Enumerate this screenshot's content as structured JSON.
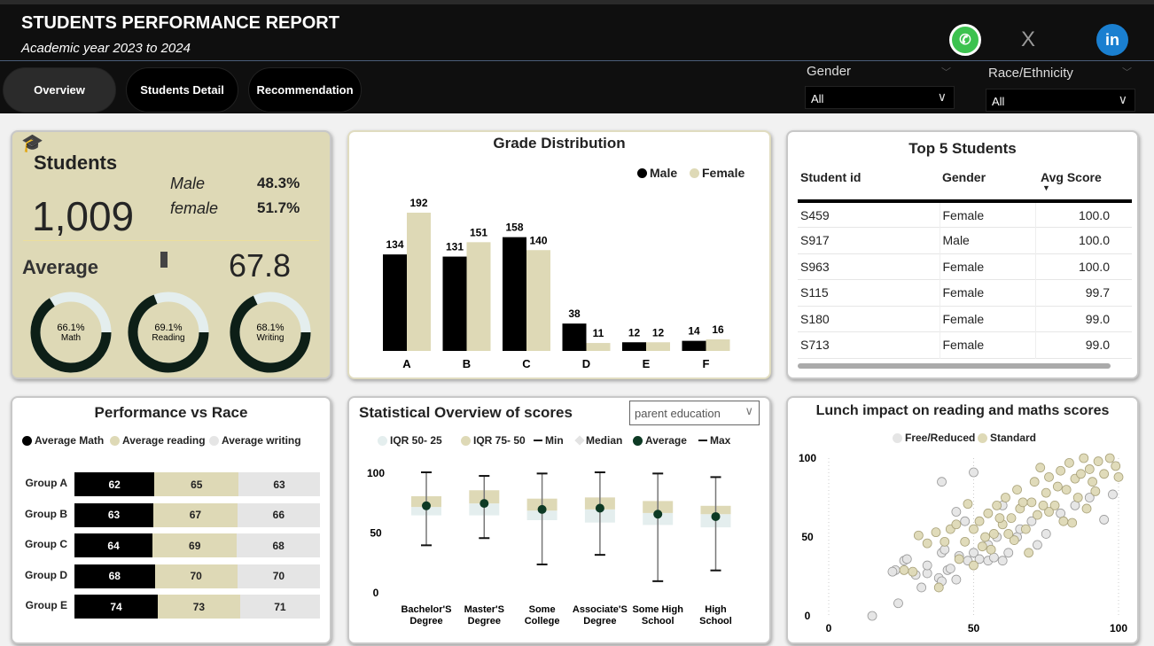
{
  "header": {
    "title": "STUDENTS PERFORMANCE REPORT",
    "subtitle": "Academic year 2023 to 2024"
  },
  "tabs": [
    {
      "label": "Overview"
    },
    {
      "label": "Students Detail"
    },
    {
      "label": "Recommendation"
    }
  ],
  "social": {
    "whatsapp": "whatsapp-icon",
    "x": "X",
    "linkedin": "in"
  },
  "filters": {
    "gender": {
      "label": "Gender",
      "value": "All"
    },
    "race": {
      "label": "Race/Ethnicity",
      "value": "All"
    }
  },
  "colors": {
    "header": "#0f0f0f",
    "beige": "#ded9b6",
    "dark": "#0d1f17",
    "light": "#e4eeee",
    "gray": "#e5e5e5"
  },
  "kpi": {
    "students_label": "Students",
    "students_count": "1,009",
    "male_label": "Male",
    "male_pct": "48.3%",
    "female_label": "female",
    "female_pct": "51.7%",
    "average_label": "Average",
    "average_value": "67.8",
    "donuts": [
      {
        "pct": 66.1,
        "pct_label": "66.1%",
        "label": "Math"
      },
      {
        "pct": 69.1,
        "pct_label": "69.1%",
        "label": "Reading"
      },
      {
        "pct": 68.1,
        "pct_label": "68.1%",
        "label": "Writing"
      }
    ]
  },
  "chart_data": [
    {
      "type": "bar",
      "title": "Grade Distribution",
      "categories": [
        "A",
        "B",
        "C",
        "D",
        "E",
        "F"
      ],
      "series": [
        {
          "name": "Male",
          "values": [
            134,
            131,
            158,
            38,
            12,
            14
          ]
        },
        {
          "name": "Female",
          "values": [
            192,
            151,
            140,
            11,
            12,
            16
          ]
        }
      ],
      "legend": "top-right"
    },
    {
      "type": "bar",
      "title": "Performance vs Race",
      "stacked": "100%",
      "categories": [
        "Group A",
        "Group B",
        "Group C",
        "Group D",
        "Group E"
      ],
      "series": [
        {
          "name": "Average Math",
          "values": [
            62,
            63,
            64,
            68,
            74
          ]
        },
        {
          "name": "Average reading",
          "values": [
            65,
            67,
            69,
            70,
            73
          ]
        },
        {
          "name": "Average writing",
          "values": [
            63,
            66,
            68,
            70,
            71
          ]
        }
      ],
      "legend": "top-left"
    },
    {
      "type": "box",
      "title": "Statistical Overview of scores",
      "dropdown": "parent education",
      "legend": [
        "IQR 50- 25",
        "IQR 75- 50",
        "Min",
        "Median",
        "Average",
        "Max"
      ],
      "yticks": [
        "100",
        "50",
        "0"
      ],
      "ylim": [
        0,
        100
      ],
      "categories": [
        [
          "Bachelor'S",
          "Degree"
        ],
        [
          "Master'S",
          "Degree"
        ],
        [
          "Some",
          "College"
        ],
        [
          "Associate'S",
          "Degree"
        ],
        [
          "Some High",
          "School"
        ],
        [
          "High",
          "School"
        ]
      ],
      "min": [
        39,
        45,
        23,
        31,
        9,
        18
      ],
      "q1": [
        64,
        64,
        60,
        58,
        56,
        54
      ],
      "median": [
        71,
        74,
        68,
        69,
        66,
        65
      ],
      "q3": [
        80,
        85,
        78,
        79,
        76,
        72
      ],
      "max": [
        100,
        97,
        99,
        100,
        99,
        96
      ],
      "average": [
        72,
        74,
        69,
        70,
        65,
        63
      ]
    },
    {
      "type": "scatter",
      "title": "Lunch impact on reading and maths scores",
      "xlim": [
        0,
        100
      ],
      "ylim": [
        0,
        100
      ],
      "xticks": [
        "0",
        "50",
        "100"
      ],
      "yticks": [
        "100",
        "50",
        "0"
      ],
      "series": [
        {
          "name": "Free/Reduced",
          "points": [
            [
              15,
              0
            ],
            [
              24,
              8
            ],
            [
              23,
              29
            ],
            [
              22,
              28
            ],
            [
              26,
              35
            ],
            [
              27,
              36
            ],
            [
              30,
              26
            ],
            [
              32,
              18
            ],
            [
              34,
              27
            ],
            [
              34,
              32
            ],
            [
              38,
              24
            ],
            [
              39,
              22
            ],
            [
              39,
              40
            ],
            [
              40,
              42
            ],
            [
              41,
              29
            ],
            [
              42,
              30
            ],
            [
              44,
              23
            ],
            [
              44,
              66
            ],
            [
              39,
              85
            ],
            [
              50,
              91
            ],
            [
              45,
              38
            ],
            [
              48,
              35
            ],
            [
              50,
              40
            ],
            [
              52,
              36
            ],
            [
              55,
              35
            ],
            [
              57,
              37
            ],
            [
              60,
              35
            ],
            [
              62,
              40
            ],
            [
              55,
              45
            ],
            [
              58,
              50
            ],
            [
              65,
              50
            ],
            [
              72,
              45
            ],
            [
              75,
              52
            ],
            [
              70,
              60
            ],
            [
              80,
              65
            ],
            [
              85,
              70
            ],
            [
              90,
              75
            ],
            [
              95,
              61
            ],
            [
              98,
              77
            ],
            [
              47,
              60
            ],
            [
              60,
              70
            ],
            [
              66,
              55
            ]
          ]
        },
        {
          "name": "Standard",
          "points": [
            [
              26,
              29
            ],
            [
              29,
              28
            ],
            [
              31,
              51
            ],
            [
              34,
              46
            ],
            [
              38,
              18
            ],
            [
              37,
              53
            ],
            [
              40,
              47
            ],
            [
              42,
              55
            ],
            [
              45,
              36
            ],
            [
              47,
              47
            ],
            [
              48,
              71
            ],
            [
              50,
              32
            ],
            [
              50,
              55
            ],
            [
              52,
              60
            ],
            [
              53,
              44
            ],
            [
              55,
              65
            ],
            [
              57,
              52
            ],
            [
              58,
              70
            ],
            [
              60,
              58
            ],
            [
              61,
              75
            ],
            [
              63,
              62
            ],
            [
              64,
              48
            ],
            [
              65,
              80
            ],
            [
              66,
              68
            ],
            [
              68,
              55
            ],
            [
              70,
              72
            ],
            [
              71,
              85
            ],
            [
              72,
              64
            ],
            [
              73,
              94
            ],
            [
              75,
              78
            ],
            [
              76,
              88
            ],
            [
              78,
              70
            ],
            [
              80,
              92
            ],
            [
              82,
              80
            ],
            [
              83,
              97
            ],
            [
              85,
              87
            ],
            [
              86,
              75
            ],
            [
              88,
              100
            ],
            [
              90,
              93
            ],
            [
              91,
              85
            ],
            [
              93,
              98
            ],
            [
              95,
              90
            ],
            [
              97,
              100
            ],
            [
              99,
              95
            ],
            [
              100,
              88
            ],
            [
              89,
              68
            ],
            [
              81,
              60
            ],
            [
              69,
              40
            ],
            [
              62,
              52
            ],
            [
              56,
              42
            ],
            [
              44,
              58
            ],
            [
              76,
              66
            ],
            [
              84,
              59
            ],
            [
              54,
              50
            ],
            [
              59,
              62
            ],
            [
              67,
              72
            ],
            [
              74,
              70
            ],
            [
              79,
              82
            ],
            [
              87,
              90
            ],
            [
              92,
              79
            ]
          ]
        }
      ]
    }
  ],
  "top5": {
    "title": "Top 5 Students",
    "columns": [
      "Student id",
      "Gender",
      "Avg Score"
    ],
    "rows": [
      [
        "S459",
        "Female",
        "100.0"
      ],
      [
        "S917",
        "Male",
        "100.0"
      ],
      [
        "S963",
        "Female",
        "100.0"
      ],
      [
        "S115",
        "Female",
        "99.7"
      ],
      [
        "S180",
        "Female",
        "99.0"
      ],
      [
        "S713",
        "Female",
        "99.0"
      ]
    ]
  }
}
